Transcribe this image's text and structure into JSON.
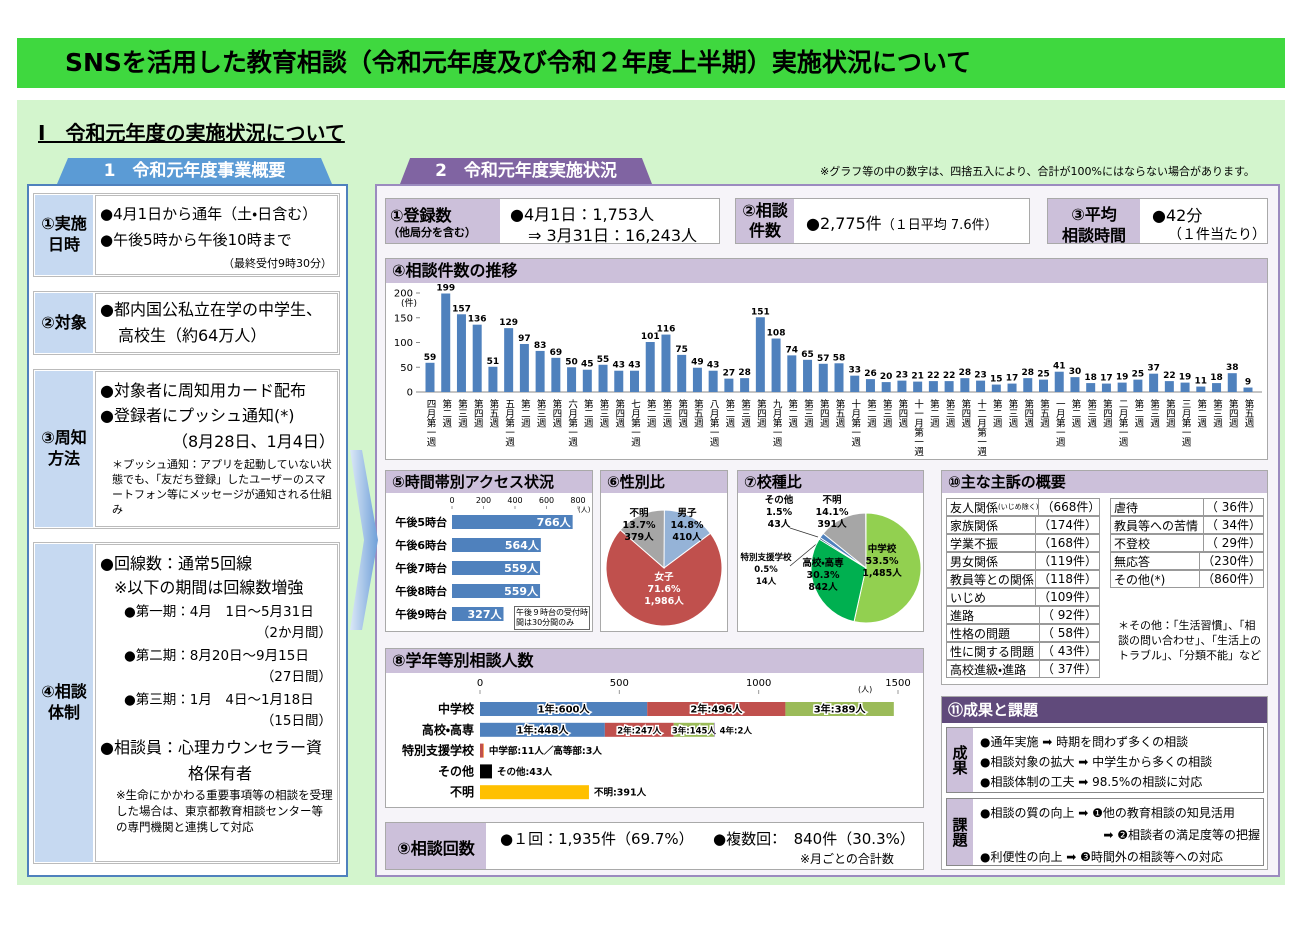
{
  "header": {
    "title": "SNSを活用した教育相談（令和元年度及び令和２年度上半期）実施状況について"
  },
  "section": {
    "title": "Ⅰ　令和元年度の実施状況について"
  },
  "overview": {
    "heading": "1　令和元年度事業概要",
    "rows": [
      {
        "label": "①実施日時",
        "lines": [
          "●4月1日から通年（土・日含む）",
          "●午後5時から午後10時まで"
        ],
        "note": "（最終受付9時30分）"
      },
      {
        "label": "②対象",
        "lines": [
          "●都内国公私立在学の中学生、高校生（約64万人）"
        ]
      },
      {
        "label": "③周知方法",
        "lines": [
          "●対象者に周知用カード配布",
          "●登録者にプッシュ通知(*)",
          "（8月28日、1月4日）"
        ],
        "note": "＊プッシュ通知：アプリを起動していない状態でも、「友だち登録」したユーザーのスマートフォン等にメッセージが通知される仕組み"
      },
      {
        "label": "④相談体制",
        "lines": [
          "●回線数：通常5回線",
          "※以下の期間は回線数増強",
          "●第一期：4月　1日～5月31日",
          "（2か月間）",
          "●第二期：8月20日～9月15日",
          "（27日間）",
          "●第三期：1月　4日～1月18日",
          "（15日間）",
          "●相談員：心理カウンセラー資格保有者"
        ],
        "note": "※生命にかかわる重要事項等の相談を受理した場合は、東京都教育相談センター等の専門機関と連携して対応"
      }
    ]
  },
  "status": {
    "heading": "2　令和元年度実施状況",
    "note": "※グラフ等の中の数字は、四捨五入により、合計が100%にはならない場合があります。",
    "registrations": {
      "label": "①登録数",
      "sublabel": "（他局分を含む）",
      "lines": [
        "●4月1日：1,753人",
        "⇒ 3月31日：16,243人"
      ]
    },
    "consultations": {
      "label": "②相談件数",
      "text": "●2,775件",
      "sub": "（１日平均 7.6件）"
    },
    "duration": {
      "label": [
        "③平均",
        "相談時間"
      ],
      "text": "●42分",
      "sub": "（１件当たり）"
    },
    "weekly": {
      "type": "bar",
      "title": "④相談件数の推移",
      "unit": "(件)",
      "color": "#4f81bd",
      "categories": [
        "四月第一週",
        "第二週",
        "第三週",
        "第四週",
        "第五週",
        "五月第一週",
        "第二週",
        "第三週",
        "第四週",
        "六月第一週",
        "第二週",
        "第三週",
        "第四週",
        "七月第一週",
        "第二週",
        "第三週",
        "第四週",
        "第五週",
        "八月第一週",
        "第二週",
        "第三週",
        "第四週",
        "九月第一週",
        "第二週",
        "第三週",
        "第四週",
        "第五週",
        "十月第一週",
        "第二週",
        "第三週",
        "第四週",
        "十一月第一週",
        "第二週",
        "第三週",
        "第四週",
        "十二月第一週",
        "第二週",
        "第三週",
        "第四週",
        "第五週",
        "一月第一週",
        "第二週",
        "第三週",
        "第四週",
        "二月第一週",
        "第二週",
        "第三週",
        "第四週",
        "三月第一週",
        "第二週",
        "第三週",
        "第四週",
        "第五週"
      ],
      "values": [
        59,
        199,
        157,
        136,
        51,
        129,
        97,
        83,
        69,
        50,
        45,
        55,
        43,
        43,
        101,
        116,
        75,
        49,
        43,
        27,
        28,
        151,
        108,
        74,
        65,
        57,
        58,
        33,
        26,
        20,
        23,
        21,
        22,
        22,
        28,
        23,
        15,
        17,
        28,
        25,
        41,
        30,
        18,
        17,
        19,
        25,
        37,
        22,
        19,
        11,
        18,
        38,
        9
      ],
      "ylim": [
        0,
        200
      ],
      "yticks": [
        0,
        50,
        100,
        150,
        200
      ]
    },
    "hourly": {
      "type": "hbar",
      "title": "⑤時間帯別アクセス状況",
      "unit": "(人)",
      "color": "#4f81bd",
      "categories": [
        "午後5時台",
        "午後6時台",
        "午後7時台",
        "午後8時台",
        "午後9時台"
      ],
      "values": [
        766,
        564,
        559,
        559,
        327
      ],
      "value_labels": [
        "766人",
        "564人",
        "559人",
        "559人",
        "327人"
      ],
      "xlim": [
        0,
        800
      ],
      "xticks": [
        0,
        200,
        400,
        600,
        800
      ],
      "note": "午後９時台の受付時間は30分間のみ"
    },
    "gender": {
      "type": "pie",
      "title": "⑥性別比",
      "categories": [
        "男子",
        "女子",
        "不明"
      ],
      "values": [
        14.8,
        71.6,
        13.7
      ],
      "value_labels": [
        "14.8%",
        "71.6%",
        "13.7%"
      ],
      "count_labels": [
        "410人",
        "1,986人",
        "379人"
      ],
      "colors": [
        "#95b3d7",
        "#c0504d",
        "#a6a6a6"
      ]
    },
    "school": {
      "type": "pie",
      "title": "⑦校種比",
      "categories": [
        "中学校",
        "高校・高専",
        "特別支援学校",
        "その他",
        "不明"
      ],
      "values": [
        53.5,
        30.3,
        0.5,
        1.5,
        14.1
      ],
      "value_labels": [
        "53.5%",
        "30.3%",
        "0.5%",
        "1.5%",
        "14.1%"
      ],
      "count_labels": [
        "1,485人",
        "842人",
        "14人",
        "43人",
        "391人"
      ],
      "colors": [
        "#92d050",
        "#00b050",
        "#1f497d",
        "#4f81bd",
        "#a6a6a6"
      ]
    },
    "grade": {
      "type": "stacked-hbar",
      "title": "⑧学年等別相談人数",
      "unit": "(人)",
      "xlim": [
        0,
        1500
      ],
      "xticks": [
        0,
        500,
        1000,
        1500
      ],
      "rows": [
        {
          "name": "中学校",
          "segments": [
            {
              "value": 600,
              "label": "1年:600人",
              "color": "#4f81bd"
            },
            {
              "value": 496,
              "label": "2年:496人",
              "color": "#c0504d"
            },
            {
              "value": 389,
              "label": "3年:389人",
              "color": "#9bbb59"
            }
          ]
        },
        {
          "name": "高校・高専",
          "segments": [
            {
              "value": 448,
              "label": "1年:448人",
              "color": "#4f81bd"
            },
            {
              "value": 247,
              "label": "2年:247人",
              "color": "#c0504d"
            },
            {
              "value": 145,
              "label": "3年:145人",
              "color": "#9bbb59"
            },
            {
              "value": 2,
              "label": "4年:2人",
              "color": "#8064a2"
            }
          ]
        },
        {
          "name": "特別支援学校",
          "segments": [
            {
              "value": 11,
              "color": "#c0504d"
            },
            {
              "value": 3,
              "color": "#f79646"
            }
          ],
          "label": "中学部:11人／高等部:3人"
        },
        {
          "name": "その他",
          "segments": [
            {
              "value": 43,
              "color": "#000000"
            }
          ],
          "label": "その他:43人"
        },
        {
          "name": "不明",
          "segments": [
            {
              "value": 391,
              "color": "#ffc000"
            }
          ],
          "label": "不明:391人"
        }
      ]
    },
    "sessions": {
      "label": "⑨相談回数",
      "lines": [
        "●１回：1,935件（69.7%）",
        "●複数回：　840件（30.3%）"
      ],
      "note": "※月ごとの合計数"
    },
    "complaints": {
      "title": "⑩主な主訴の概要",
      "left": [
        {
          "name": "友人関係",
          "sub": "(いじめ除く)",
          "count": "（668件）"
        },
        {
          "name": "家族関係",
          "count": "（174件）"
        },
        {
          "name": "学業不振",
          "count": "（168件）"
        },
        {
          "name": "男女関係",
          "count": "（119件）"
        },
        {
          "name": "教員等との関係",
          "count": "（118件）"
        },
        {
          "name": "いじめ",
          "count": "（109件）"
        },
        {
          "name": "進路",
          "count": "（ 92件）"
        },
        {
          "name": "性格の問題",
          "count": "（ 58件）"
        },
        {
          "name": "性に関する問題",
          "count": "（ 43件）"
        },
        {
          "name": "高校進級・進路",
          "count": "（ 37件）"
        }
      ],
      "right": [
        {
          "name": "虐待",
          "count": "（ 36件）"
        },
        {
          "name": "教員等への苦情",
          "count": "（ 34件）"
        },
        {
          "name": "不登校",
          "count": "（ 29件）"
        },
        {
          "name": "無応答",
          "count": "（230件）"
        },
        {
          "name": "その他(*)",
          "count": "（860件）"
        }
      ],
      "note": "＊その他：「生活習慣」、「相談の問い合わせ」、「生活上のトラブル」、「分類不能」など"
    },
    "outcomes": {
      "title": "⑪成果と課題",
      "results": {
        "label": "成果",
        "lines": [
          "●通年実施 ➡ 時期を問わず多くの相談",
          "●相談対象の拡大 ➡ 中学生から多くの相談",
          "●相談体制の工夫 ➡ 98.5%の相談に対応"
        ]
      },
      "issues": {
        "label": "課題",
        "lines": [
          "●相談の質の向上 ➡ ❶他の教育相談の知見活用",
          "➡ ❷相談者の満足度等の把握",
          "●利便性の向上 ➡ ❸時間外の相談等への対応"
        ]
      }
    }
  }
}
